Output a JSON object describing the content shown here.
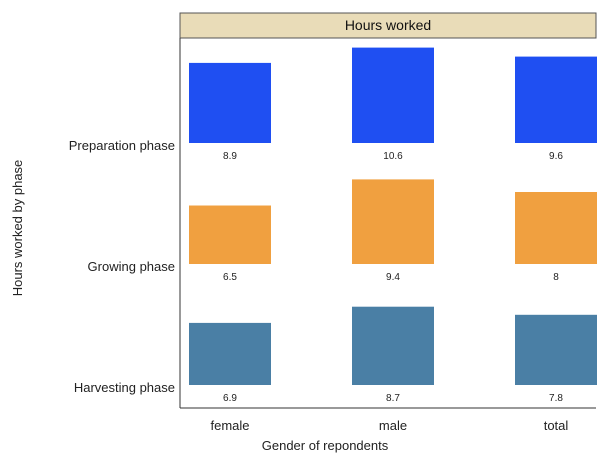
{
  "chart_data": {
    "type": "bar",
    "title": "Hours worked",
    "xlabel": "Gender of repondents",
    "ylabel": "Hours worked by phase",
    "categories": [
      "female",
      "male",
      "total"
    ],
    "ylim": [
      0,
      11
    ],
    "series": [
      {
        "name": "Preparation phase",
        "color": "#1f4ff2",
        "values": [
          8.9,
          10.6,
          9.6
        ],
        "labels": [
          "8.9",
          "10.6",
          "9.6"
        ]
      },
      {
        "name": "Growing phase",
        "color": "#f0a040",
        "values": [
          6.5,
          9.4,
          8
        ],
        "labels": [
          "6.5",
          "9.4",
          "8"
        ]
      },
      {
        "name": "Harvesting phase",
        "color": "#4a7fa5",
        "values": [
          6.9,
          8.7,
          7.8
        ],
        "labels": [
          "6.9",
          "8.7",
          "7.8"
        ]
      }
    ],
    "strip_color": "#e9dcb8",
    "grid": false,
    "legend": "none"
  }
}
